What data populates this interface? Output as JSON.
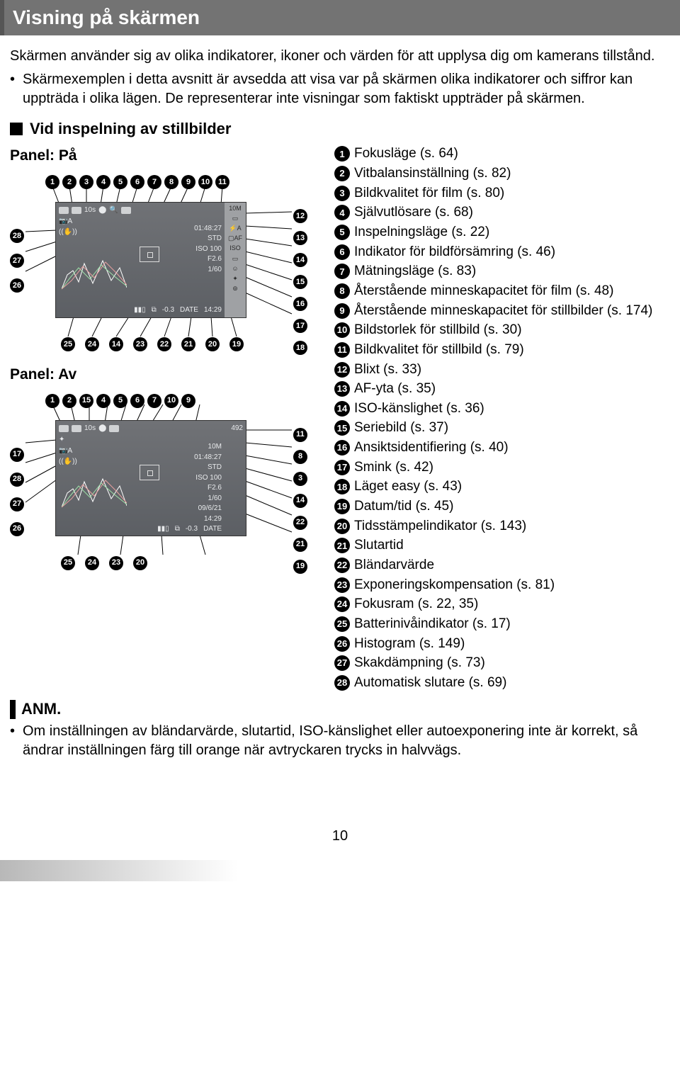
{
  "banner": {
    "title": "Visning på skärmen"
  },
  "intro": {
    "para1": "Skärmen använder sig av olika indikatorer, ikoner och värden för att upplysa dig om kamerans tillstånd.",
    "bullet1": "Skärmexemplen i detta avsnitt är avsedda att visa var på skärmen olika indikatorer och siffror kan uppträda i olika lägen. De representerar inte visningar som faktiskt uppträder på skärmen."
  },
  "section": {
    "title": "Vid inspelning av stillbilder",
    "panel_on": "Panel: På",
    "panel_off": "Panel: Av"
  },
  "screen_values": {
    "remaining": "492",
    "time": "01:48:27",
    "std": "STD",
    "iso_label": "ISO",
    "iso_val": "ISO 100",
    "f": "F2.6",
    "shutter": "1/60",
    "ev": "-0.3",
    "clock": "14:29",
    "date": "09/6/21",
    "timer": "10s",
    "size_icon": "10M",
    "flash_icon": "⚡A",
    "af_icon": "▢AF",
    "face_icon": "☺",
    "date_stamp": "DATE"
  },
  "top_numbers_on": [
    1,
    2,
    3,
    4,
    5,
    6,
    7,
    8,
    9,
    10,
    11
  ],
  "right_numbers_on": [
    12,
    13,
    14,
    15,
    16,
    17,
    18
  ],
  "bottom_numbers_on": [
    25,
    24,
    14,
    23,
    22,
    21,
    20,
    19
  ],
  "left_numbers_on": [
    28,
    27,
    26
  ],
  "top_numbers_off": [
    1,
    2,
    15,
    4,
    5,
    6,
    7,
    10,
    9
  ],
  "right_numbers_off": [
    11,
    8,
    3,
    14,
    22,
    21,
    19
  ],
  "bottom_numbers_off": [
    25,
    24,
    23,
    20
  ],
  "left_numbers_off": [
    17,
    28,
    27,
    26
  ],
  "legend": [
    {
      "n": 1,
      "t": "Fokusläge (s. 64)"
    },
    {
      "n": 2,
      "t": "Vitbalansinställning (s. 82)"
    },
    {
      "n": 3,
      "t": "Bildkvalitet för film (s. 80)"
    },
    {
      "n": 4,
      "t": "Självutlösare (s. 68)"
    },
    {
      "n": 5,
      "t": "Inspelningsläge (s. 22)"
    },
    {
      "n": 6,
      "t": "Indikator för bildförsämring (s. 46)"
    },
    {
      "n": 7,
      "t": "Mätningsläge (s. 83)"
    },
    {
      "n": 8,
      "t": "Återstående minneskapacitet för film (s. 48)"
    },
    {
      "n": 9,
      "t": "Återstående minneskapacitet för stillbilder (s. 174)"
    },
    {
      "n": 10,
      "t": "Bildstorlek för stillbild (s. 30)"
    },
    {
      "n": 11,
      "t": "Bildkvalitet för stillbild (s. 79)"
    },
    {
      "n": 12,
      "t": "Blixt (s. 33)"
    },
    {
      "n": 13,
      "t": "AF-yta (s. 35)"
    },
    {
      "n": 14,
      "t": "ISO-känslighet (s. 36)"
    },
    {
      "n": 15,
      "t": "Seriebild (s. 37)"
    },
    {
      "n": 16,
      "t": "Ansiktsidentifiering (s. 40)"
    },
    {
      "n": 17,
      "t": "Smink (s. 42)"
    },
    {
      "n": 18,
      "t": "Läget easy (s. 43)"
    },
    {
      "n": 19,
      "t": "Datum/tid (s. 45)"
    },
    {
      "n": 20,
      "t": "Tidsstämpelindikator (s. 143)"
    },
    {
      "n": 21,
      "t": "Slutartid"
    },
    {
      "n": 22,
      "t": "Bländarvärde"
    },
    {
      "n": 23,
      "t": "Exponeringskompensation (s. 81)"
    },
    {
      "n": 24,
      "t": "Fokusram (s. 22, 35)"
    },
    {
      "n": 25,
      "t": "Batterinivåindikator (s. 17)"
    },
    {
      "n": 26,
      "t": "Histogram (s. 149)"
    },
    {
      "n": 27,
      "t": "Skakdämpning (s. 73)"
    },
    {
      "n": 28,
      "t": "Automatisk slutare (s. 69)"
    }
  ],
  "note": {
    "head": "ANM.",
    "body": "Om inställningen av bländarvärde, slutartid, ISO-känslighet eller autoexponering inte är korrekt, så ändrar inställningen färg till orange när avtryckaren trycks in halvvägs."
  },
  "page_number": "10",
  "colors": {
    "banner_bg": "#737373",
    "screen_bg_top": "#707276",
    "screen_bg_bot": "#5c5f64",
    "side_bg": "#9fa1a4",
    "badge_bg": "#000000",
    "badge_fg": "#ffffff"
  }
}
